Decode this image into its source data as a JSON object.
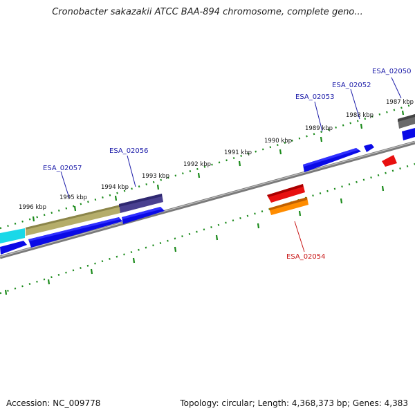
{
  "title": "Cronobacter sakazakii ATCC BAA-894 chromosome, complete geno...",
  "footer": {
    "accession": "Accession: NC_009778",
    "summary": "Topology: circular; Length: 4,368,373 bp; Genes: 4,383"
  },
  "ticks": [
    "1987 kbp",
    "1988 kbp",
    "1989 kbp",
    "1990 kbp",
    "1991 kbp",
    "1992 kbp",
    "1993 kbp",
    "1994 kbp",
    "1995 kbp",
    "1996 kbp"
  ],
  "genes_forward": [
    "ESA_02050",
    "ESA_02052",
    "ESA_02053",
    "ESA_02056",
    "ESA_02057"
  ],
  "genes_reverse": [
    "ESA_02054"
  ],
  "colors": {
    "backbone": "#8a8a8a",
    "tick": "#1a8a1a",
    "label_blue": "#1a1aa8",
    "label_red": "#c81414",
    "gene_blue": "#0a0ae6",
    "gene_red": "#e81010",
    "gene_orange": "#ff8c00",
    "gene_olive": "#b5ad6a",
    "gene_navy": "#4a4090",
    "gene_cyan": "#1ad8e8",
    "gene_gray": "#6a6a6a"
  }
}
